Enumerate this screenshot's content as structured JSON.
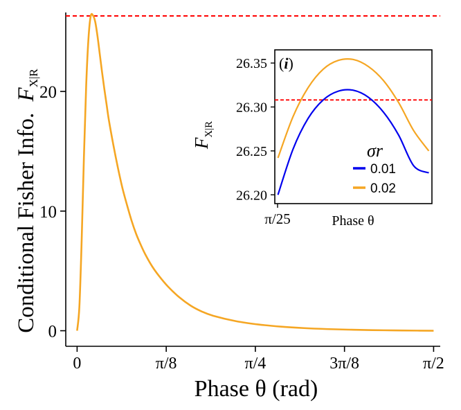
{
  "chart_data": [
    {
      "type": "line",
      "title": "",
      "xlabel": "Phase θ (rad)",
      "ylabel": "Conditional Fisher Info.",
      "ylabel_symbol": "F",
      "ylabel_subscript": "X|R",
      "xlim": [
        -0.05,
        1.6
      ],
      "ylim": [
        -1.3,
        26.6
      ],
      "xticks": [
        {
          "value": 0,
          "label": "0"
        },
        {
          "value": 0.3927,
          "label": "π/8"
        },
        {
          "value": 0.7854,
          "label": "π/4"
        },
        {
          "value": 1.1781,
          "label": "3π/8"
        },
        {
          "value": 1.5708,
          "label": "π/2"
        }
      ],
      "yticks": [
        {
          "value": 0,
          "label": "0"
        },
        {
          "value": 10,
          "label": "10"
        },
        {
          "value": 20,
          "label": "20"
        }
      ],
      "reference_line": {
        "y": 26.31,
        "color": "#ff0000",
        "style": "dashed"
      },
      "series": [
        {
          "color": "#f5a623",
          "x": [
            0,
            0.01,
            0.02,
            0.03,
            0.04,
            0.05,
            0.06,
            0.07,
            0.08,
            0.09,
            0.1,
            0.11,
            0.12,
            0.13,
            0.14,
            0.16,
            0.18,
            0.2,
            0.22,
            0.24,
            0.26,
            0.28,
            0.3,
            0.33,
            0.36,
            0.4,
            0.45,
            0.5,
            0.55,
            0.6,
            0.7,
            0.8,
            0.9,
            1.0,
            1.1,
            1.2,
            1.3,
            1.4,
            1.5,
            1.5708
          ],
          "y": [
            0,
            2.0,
            7.5,
            14.5,
            20.5,
            24.4,
            26.3,
            26.35,
            25.8,
            24.6,
            23.1,
            21.6,
            20.2,
            18.9,
            17.6,
            15.5,
            13.6,
            11.9,
            10.5,
            9.2,
            8.1,
            7.2,
            6.4,
            5.4,
            4.6,
            3.7,
            2.8,
            2.1,
            1.6,
            1.25,
            0.8,
            0.52,
            0.34,
            0.22,
            0.14,
            0.09,
            0.05,
            0.03,
            0.01,
            0
          ]
        }
      ],
      "grid": false
    },
    {
      "type": "line",
      "panel_label": "i",
      "xlabel": "Phase θ",
      "ylabel_symbol": "F",
      "ylabel_subscript": "X|R",
      "xtick_label": "π/25",
      "ylim": [
        26.19,
        26.365
      ],
      "yticks": [
        26.2,
        26.25,
        26.3,
        26.35
      ],
      "reference_line": {
        "y": 26.308,
        "color": "#ff0000",
        "style": "dashed"
      },
      "legend": {
        "title": "σr",
        "placement": "bottom-right"
      },
      "series": [
        {
          "name": "0.01",
          "color": "#0000ee",
          "x": [
            0,
            0.1,
            0.2,
            0.3,
            0.4,
            0.5,
            0.6,
            0.7,
            0.8,
            0.9,
            1.0
          ],
          "y": [
            26.2,
            26.252,
            26.287,
            26.308,
            26.318,
            26.319,
            26.311,
            26.294,
            26.268,
            26.233,
            26.225
          ]
        },
        {
          "name": "0.02",
          "color": "#f5a623",
          "x": [
            0,
            0.1,
            0.2,
            0.3,
            0.4,
            0.5,
            0.6,
            0.7,
            0.8,
            0.9,
            1.0
          ],
          "y": [
            26.242,
            26.289,
            26.322,
            26.343,
            26.353,
            26.354,
            26.346,
            26.33,
            26.305,
            26.273,
            26.25
          ]
        }
      ]
    }
  ]
}
